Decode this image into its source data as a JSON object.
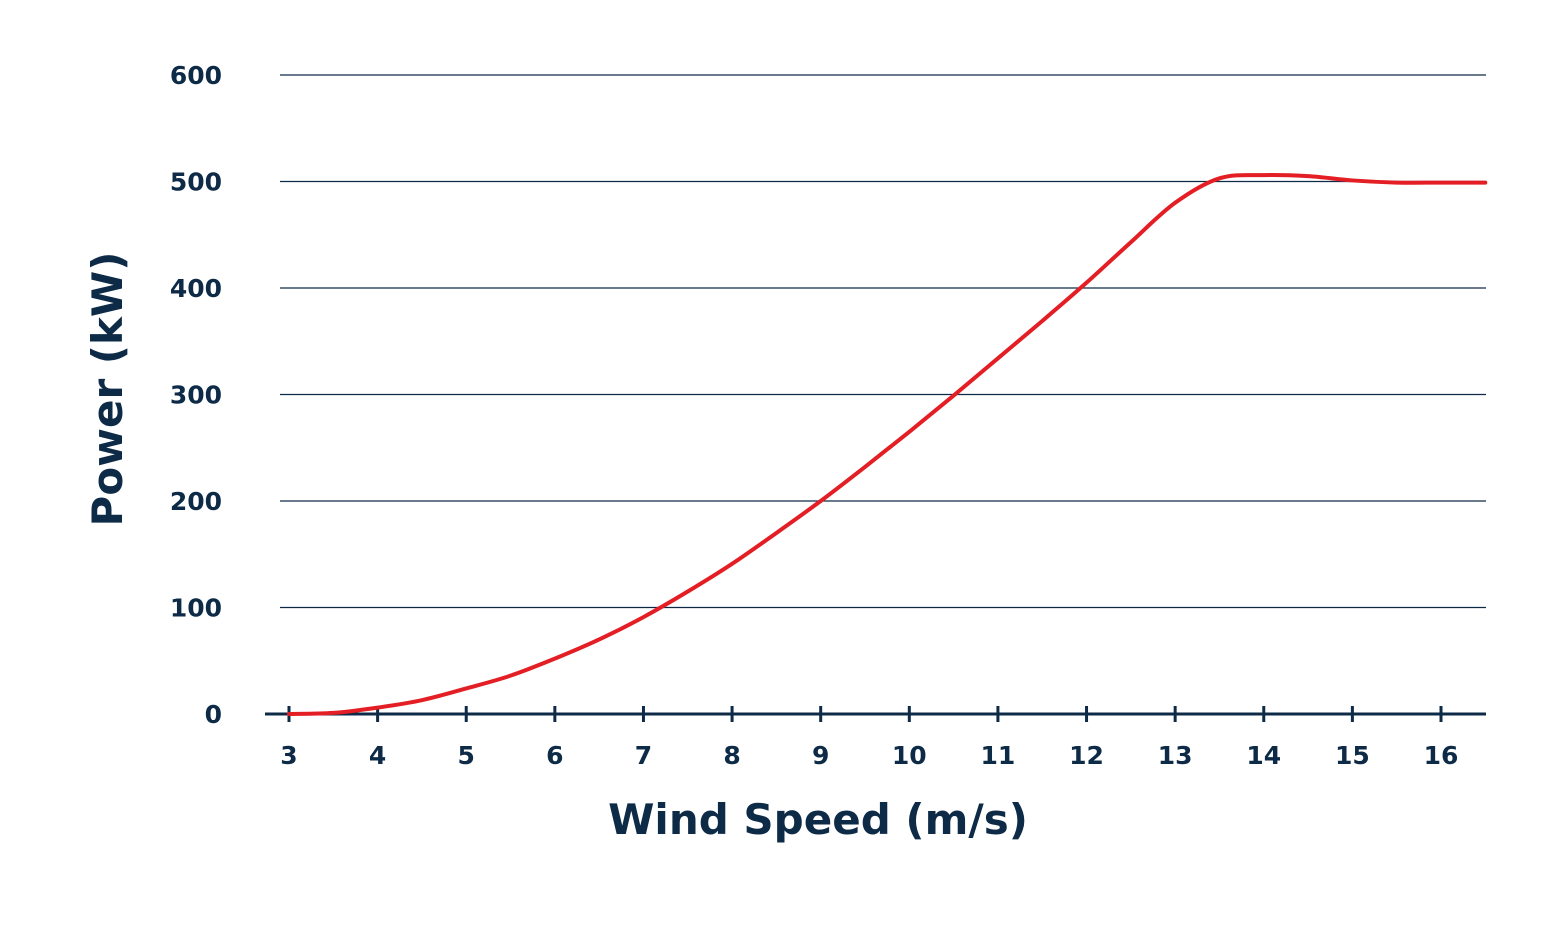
{
  "chart_data": {
    "type": "line",
    "title": "",
    "xlabel": "Wind Speed (m/s)",
    "ylabel": "Power (kW)",
    "xlim": [
      2.8,
      16.5
    ],
    "ylim": [
      0,
      600
    ],
    "x_ticks": [
      3,
      4,
      5,
      6,
      7,
      8,
      9,
      10,
      11,
      12,
      13,
      14,
      15,
      16
    ],
    "y_ticks": [
      0,
      100,
      200,
      300,
      400,
      500,
      600
    ],
    "grid": "horizontal",
    "legend": "none",
    "series": [
      {
        "x": [
          3.0,
          3.5,
          4.0,
          4.5,
          5.0,
          5.5,
          6.0,
          6.5,
          7.0,
          7.5,
          8.0,
          8.5,
          9.0,
          9.5,
          10.0,
          10.5,
          11.0,
          11.5,
          12.0,
          12.5,
          13.0,
          13.5,
          14.0,
          14.5,
          15.0,
          15.5,
          16.0,
          16.5
        ],
        "y": [
          0,
          1,
          6,
          13,
          24,
          36,
          52,
          70,
          91,
          115,
          141,
          170,
          200,
          232,
          265,
          299,
          334,
          369,
          405,
          443,
          480,
          503,
          506,
          505,
          501,
          499,
          499,
          499
        ]
      }
    ],
    "colors": {
      "line": "#e31e24",
      "text": "#0d2a47",
      "grid": "#0d2a47",
      "axis": "#0d2a47"
    }
  }
}
